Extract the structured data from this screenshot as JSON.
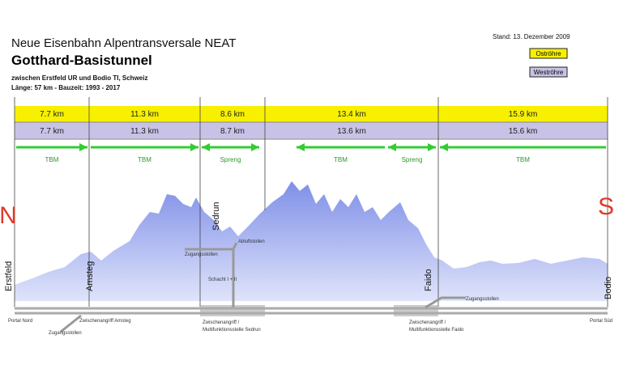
{
  "header": {
    "title": "Neue Eisenbahn Alpentransversale NEAT",
    "subtitle": "Gotthard-Basistunnel",
    "route": "zwischen Erstfeld UR und Bodio TI, Schweiz",
    "facts": "Länge: 57 km  -  Bauzeit: 1993 - 2017",
    "date": "Stand: 13. Dezember 2009"
  },
  "legend": {
    "east": "Oströhre",
    "west": "Weströhre"
  },
  "east_tube": [
    "7.7 km",
    "11.3 km",
    "8.6 km",
    "13.4 km",
    "15.9 km"
  ],
  "west_tube": [
    "7.7 km",
    "11.3 km",
    "8.7 km",
    "13.6 km",
    "15.6 km"
  ],
  "methods": [
    "TBM",
    "TBM",
    "Spreng",
    "TBM",
    "Spreng",
    "TBM"
  ],
  "compass": {
    "north": "N",
    "south": "S"
  },
  "places": [
    "Erstfeld",
    "Amsteg",
    "Sedrun",
    "Faido",
    "Bodio"
  ],
  "annotations": {
    "sedrun_access": "Zugangsstollen",
    "exhaust": "Abluftstollen",
    "shaft": "Schacht I + II",
    "faido_access": "Zugangsstollen",
    "portal_north": "Portal Nord",
    "amsteg_attack": "Zwischenangriff Amsteg",
    "amsteg_access": "Zugangsstollen",
    "sedrun_attack": "Zwischenangriff /",
    "sedrun_station": "Multifunktionsstelle Sedrun",
    "faido_attack": "Zwischenangriff /",
    "faido_station": "Multifunktionsstelle Faido",
    "portal_south": "Portal Süd"
  }
}
